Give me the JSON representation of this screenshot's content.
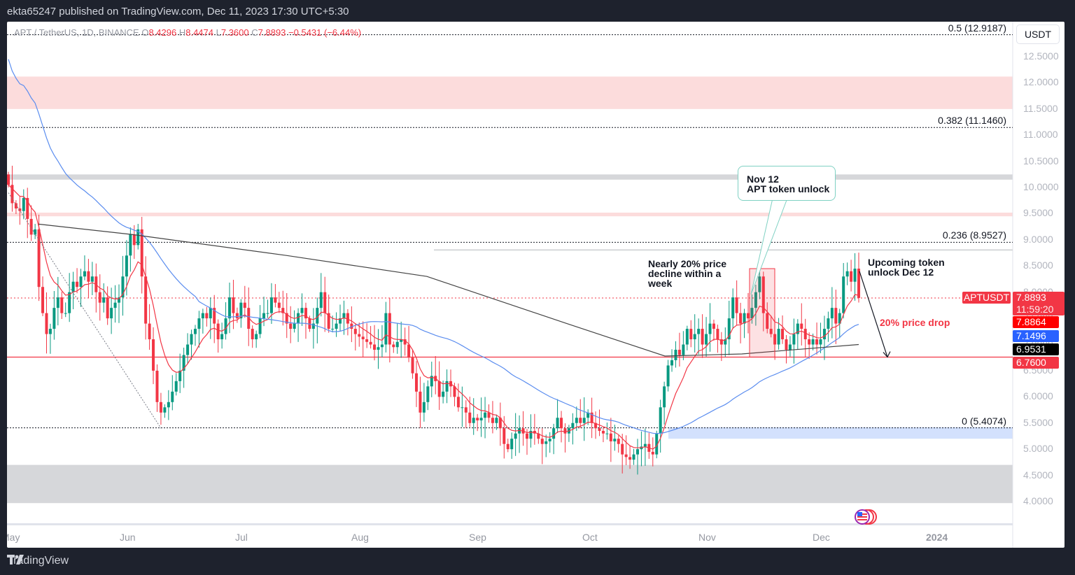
{
  "header": {
    "published": "ekta65247 published on TradingView.com, Dec 11, 2023 17:30 UTC+5:30"
  },
  "legend": {
    "symbol": "APT / TetherUS, 1D, BINANCE",
    "o_label": "O",
    "o": "8.4296",
    "h_label": "H",
    "h": "8.4474",
    "l_label": "L",
    "l": "7.3600",
    "c_label": "C",
    "c": "7.8893",
    "change": "−0.5431 (−6.44%)"
  },
  "currency_button": "USDT",
  "y_axis_ticks": [
    "12.5000",
    "12.0000",
    "11.5000",
    "11.0000",
    "10.5000",
    "10.0000",
    "9.5000",
    "9.0000",
    "8.5000",
    "8.0000",
    "7.5000",
    "7.0000",
    "6.5000",
    "6.0000",
    "5.5000",
    "5.0000",
    "4.5000",
    "4.0000"
  ],
  "x_axis_ticks": [
    "May",
    "Jun",
    "Jul",
    "Aug",
    "Sep",
    "Oct",
    "Nov",
    "Dec",
    "2024"
  ],
  "fib_levels": [
    {
      "label": "0.5 (12.9187)",
      "price": 12.9187
    },
    {
      "label": "0.382 (11.1460)",
      "price": 11.146
    },
    {
      "label": "0.236 (8.9527)",
      "price": 8.9527
    },
    {
      "label": "0 (5.4074)",
      "price": 5.4074
    }
  ],
  "price_labels": {
    "symbol_tag": "APTUSDT",
    "last_price": "7.8893",
    "countdown": "11:59:20",
    "ema_fast": "7.8864",
    "ma_mid": "7.1496",
    "ma_slow": "6.9531",
    "support": "6.7600"
  },
  "annotations": {
    "callout_line1": "Nov 12",
    "callout_line2": "APT token unlock",
    "decline_line1": "Nearly 20% price",
    "decline_line2": "decline within a",
    "decline_line3": "week",
    "upcoming_line1": "Upcoming token",
    "upcoming_line2": "unlock Dec 12",
    "drop": "20% price drop"
  },
  "footer": {
    "brand": "TradingView"
  },
  "colors": {
    "up": "#089981",
    "down": "#f23645",
    "ema": "#f23645",
    "ma50": "#5b8def",
    "ma200": "#444444",
    "resistance_zone": "#fcdcdc",
    "grey_zone": "#d6d7da",
    "blue_zone": "#d3e1fd"
  },
  "chart_data": {
    "type": "candlestick",
    "title": "APT / TetherUS, 1D, BINANCE",
    "ylabel": "USDT",
    "ylim": [
      3.7,
      13.0
    ],
    "x_ticks": [
      "May",
      "Jun",
      "Jul",
      "Aug",
      "Sep",
      "Oct",
      "Nov",
      "Dec",
      "2024"
    ],
    "last": {
      "open": 8.4296,
      "high": 8.4474,
      "low": 7.36,
      "close": 7.8893,
      "change": -0.5431,
      "change_pct": -6.44
    },
    "horizontal_levels": {
      "support": 6.76,
      "last_price": 7.8893
    },
    "zones": [
      {
        "type": "resistance",
        "from": 11.5,
        "to": 12.12
      },
      {
        "type": "grey",
        "from": 10.15,
        "to": 10.25
      },
      {
        "type": "resistance",
        "from": 9.45,
        "to": 9.52
      },
      {
        "type": "grey",
        "from": 3.97,
        "to": 4.7
      },
      {
        "type": "blue",
        "from": 5.2,
        "to": 5.42
      }
    ],
    "series_closes": [
      10.05,
      9.7,
      9.6,
      9.55,
      9.8,
      9.4,
      9.1,
      9.2,
      8.1,
      7.6,
      7.2,
      7.3,
      7.7,
      7.9,
      7.6,
      7.6,
      8.0,
      8.2,
      8.1,
      8.3,
      8.4,
      8.2,
      8.3,
      8.0,
      7.8,
      7.9,
      7.5,
      7.7,
      7.8,
      7.9,
      8.3,
      8.7,
      9.1,
      8.9,
      9.2,
      8.3,
      7.4,
      7.1,
      6.5,
      5.9,
      5.7,
      5.8,
      5.9,
      6.1,
      6.3,
      6.5,
      6.8,
      7.0,
      7.2,
      7.3,
      7.5,
      7.6,
      7.5,
      7.7,
      7.4,
      7.1,
      7.2,
      7.5,
      7.9,
      7.6,
      7.5,
      7.8,
      7.7,
      7.3,
      7.1,
      7.2,
      7.5,
      7.6,
      7.6,
      7.9,
      7.8,
      7.7,
      7.6,
      7.4,
      7.3,
      7.4,
      7.6,
      7.7,
      7.5,
      7.3,
      7.4,
      7.7,
      8.0,
      7.6,
      7.3,
      7.3,
      7.4,
      7.5,
      7.6,
      7.4,
      7.3,
      7.2,
      7.15,
      7.1,
      7.05,
      7.0,
      6.9,
      6.95,
      7.0,
      7.6,
      7.0,
      6.95,
      7.05,
      7.1,
      7.0,
      6.75,
      6.45,
      6.1,
      5.7,
      5.9,
      6.2,
      6.4,
      6.3,
      6.0,
      6.1,
      6.3,
      6.2,
      6.0,
      5.8,
      5.8,
      5.7,
      5.5,
      5.6,
      5.55,
      5.6,
      5.7,
      5.6,
      5.5,
      5.6,
      5.4,
      5.1,
      5.0,
      5.2,
      5.3,
      5.4,
      5.3,
      5.2,
      5.35,
      5.3,
      5.2,
      5.1,
      5.15,
      5.2,
      5.4,
      5.6,
      5.4,
      5.3,
      5.4,
      5.5,
      5.6,
      5.5,
      5.6,
      5.7,
      5.5,
      5.4,
      5.35,
      5.3,
      5.3,
      5.15,
      5.2,
      5.1,
      4.9,
      4.85,
      4.8,
      4.9,
      5.0,
      5.05,
      5.1,
      4.95,
      4.9,
      5.3,
      5.8,
      6.2,
      6.6,
      6.7,
      6.9,
      6.8,
      7.0,
      7.3,
      7.1,
      7.2,
      7.3,
      7.0,
      7.2,
      7.4,
      7.3,
      7.1,
      7.0,
      7.1,
      7.5,
      7.9,
      7.6,
      7.4,
      7.6,
      7.5,
      7.7,
      8.0,
      8.3,
      7.6,
      7.3,
      7.2,
      7.0,
      7.3,
      7.1,
      6.9,
      7.0,
      7.2,
      7.4,
      7.3,
      7.1,
      7.0,
      7.1,
      7.0,
      7.1,
      7.3,
      7.5,
      7.7,
      7.4,
      7.6,
      8.3,
      8.4,
      8.2,
      8.45,
      7.89
    ]
  }
}
